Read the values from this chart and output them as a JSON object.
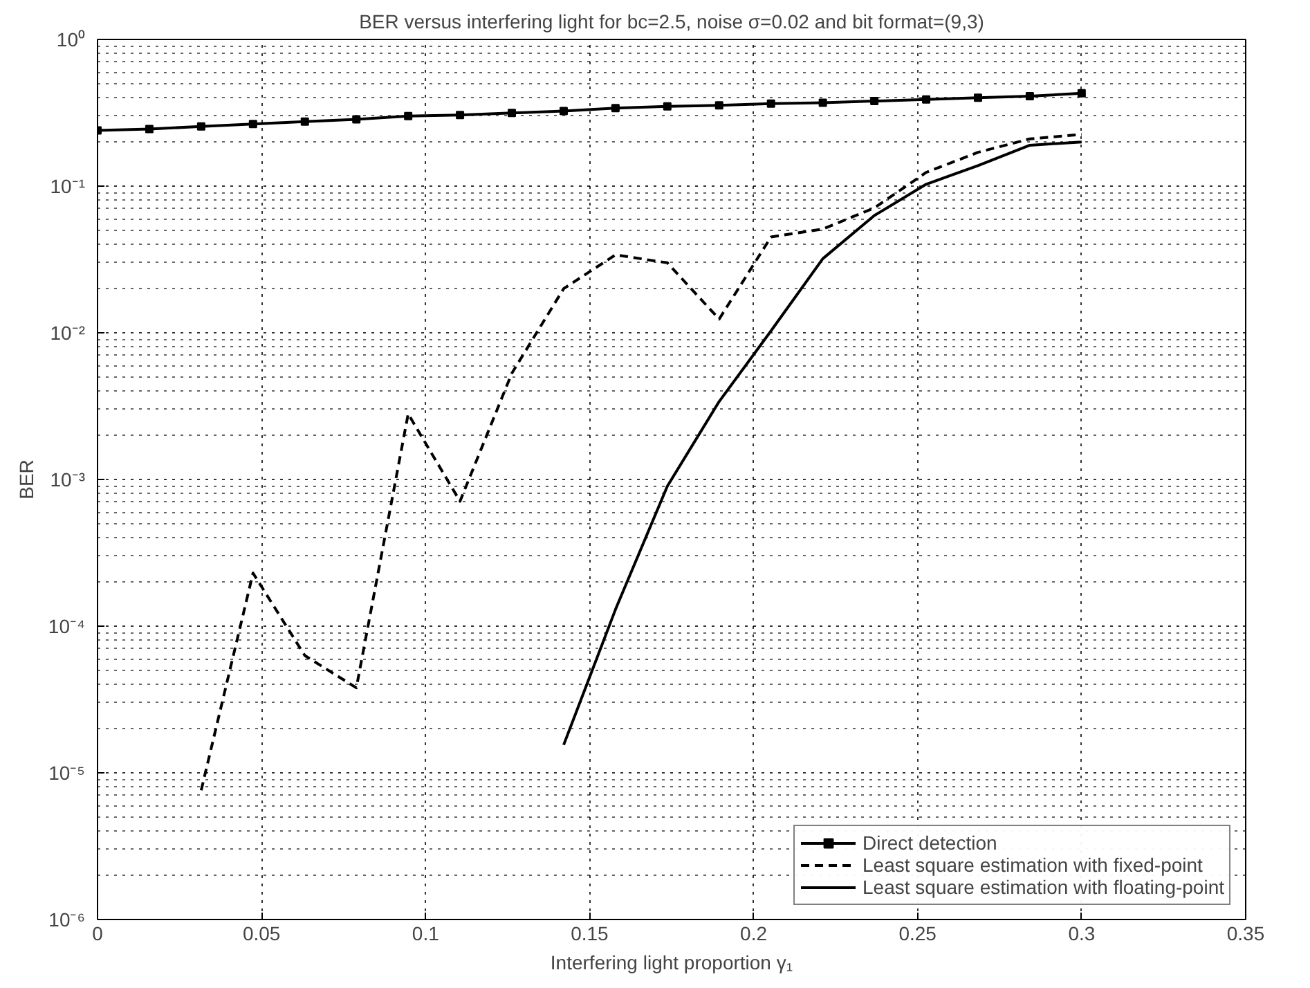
{
  "chart_data": {
    "type": "line",
    "title": "BER versus interfering light for bc=2.5, noise σ=0.02 and bit format=(9,3)",
    "xlabel": "Interfering light proportion γ₁",
    "ylabel": "BER",
    "log": "y",
    "grid": true,
    "legend": "bottom right",
    "xlim": [
      0,
      0.35
    ],
    "xticks": [
      0,
      0.05,
      0.1,
      0.15,
      0.2,
      0.25,
      0.3,
      0.35
    ],
    "ylim": [
      1e-06,
      1
    ],
    "yticks": [
      {
        "value": 1e-06,
        "label": "10⁻⁶"
      },
      {
        "value": 1e-05,
        "label": "10⁻⁵"
      },
      {
        "value": 0.0001,
        "label": "10⁻⁴"
      },
      {
        "value": 0.001,
        "label": "10⁻³"
      },
      {
        "value": 0.01,
        "label": "10⁻²"
      },
      {
        "value": 0.1,
        "label": "10⁻¹"
      },
      {
        "value": 1,
        "label": "10⁰"
      }
    ],
    "series": [
      {
        "name": "Direct detection",
        "color": "#000000",
        "marker": "square",
        "line_style": "solid",
        "x": [
          0,
          0.0158,
          0.0316,
          0.0474,
          0.0632,
          0.0789,
          0.0947,
          0.1105,
          0.1263,
          0.1421,
          0.1579,
          0.1737,
          0.1895,
          0.2053,
          0.2211,
          0.2368,
          0.2526,
          0.2684,
          0.2842,
          0.3
        ],
        "values": [
          0.24,
          0.245,
          0.255,
          0.265,
          0.275,
          0.285,
          0.3,
          0.305,
          0.315,
          0.325,
          0.34,
          0.35,
          0.355,
          0.365,
          0.37,
          0.38,
          0.39,
          0.4,
          0.41,
          0.43
        ]
      },
      {
        "name": "Least square estimation with fixed-point",
        "color": "#000000",
        "marker": "none",
        "line_style": "dashed",
        "x": [
          0.0316,
          0.0474,
          0.0632,
          0.0789,
          0.0947,
          0.1105,
          0.1263,
          0.1421,
          0.1579,
          0.1737,
          0.1895,
          0.2053,
          0.2211,
          0.2368,
          0.2526,
          0.2684,
          0.2842,
          0.3
        ],
        "values": [
          7.6e-06,
          0.00023,
          6.3e-05,
          3.8e-05,
          0.0028,
          0.00071,
          0.0053,
          0.02,
          0.034,
          0.03,
          0.0124,
          0.045,
          0.051,
          0.071,
          0.124,
          0.17,
          0.21,
          0.225
        ]
      },
      {
        "name": "Least square estimation with floating-point",
        "color": "#000000",
        "marker": "none",
        "line_style": "solid",
        "x": [
          0.1421,
          0.1579,
          0.1737,
          0.1895,
          0.2053,
          0.2211,
          0.2368,
          0.2526,
          0.2684,
          0.2842,
          0.3
        ],
        "values": [
          1.55e-05,
          0.00013,
          0.0009,
          0.0034,
          0.0103,
          0.032,
          0.063,
          0.103,
          0.138,
          0.19,
          0.2
        ]
      }
    ]
  }
}
